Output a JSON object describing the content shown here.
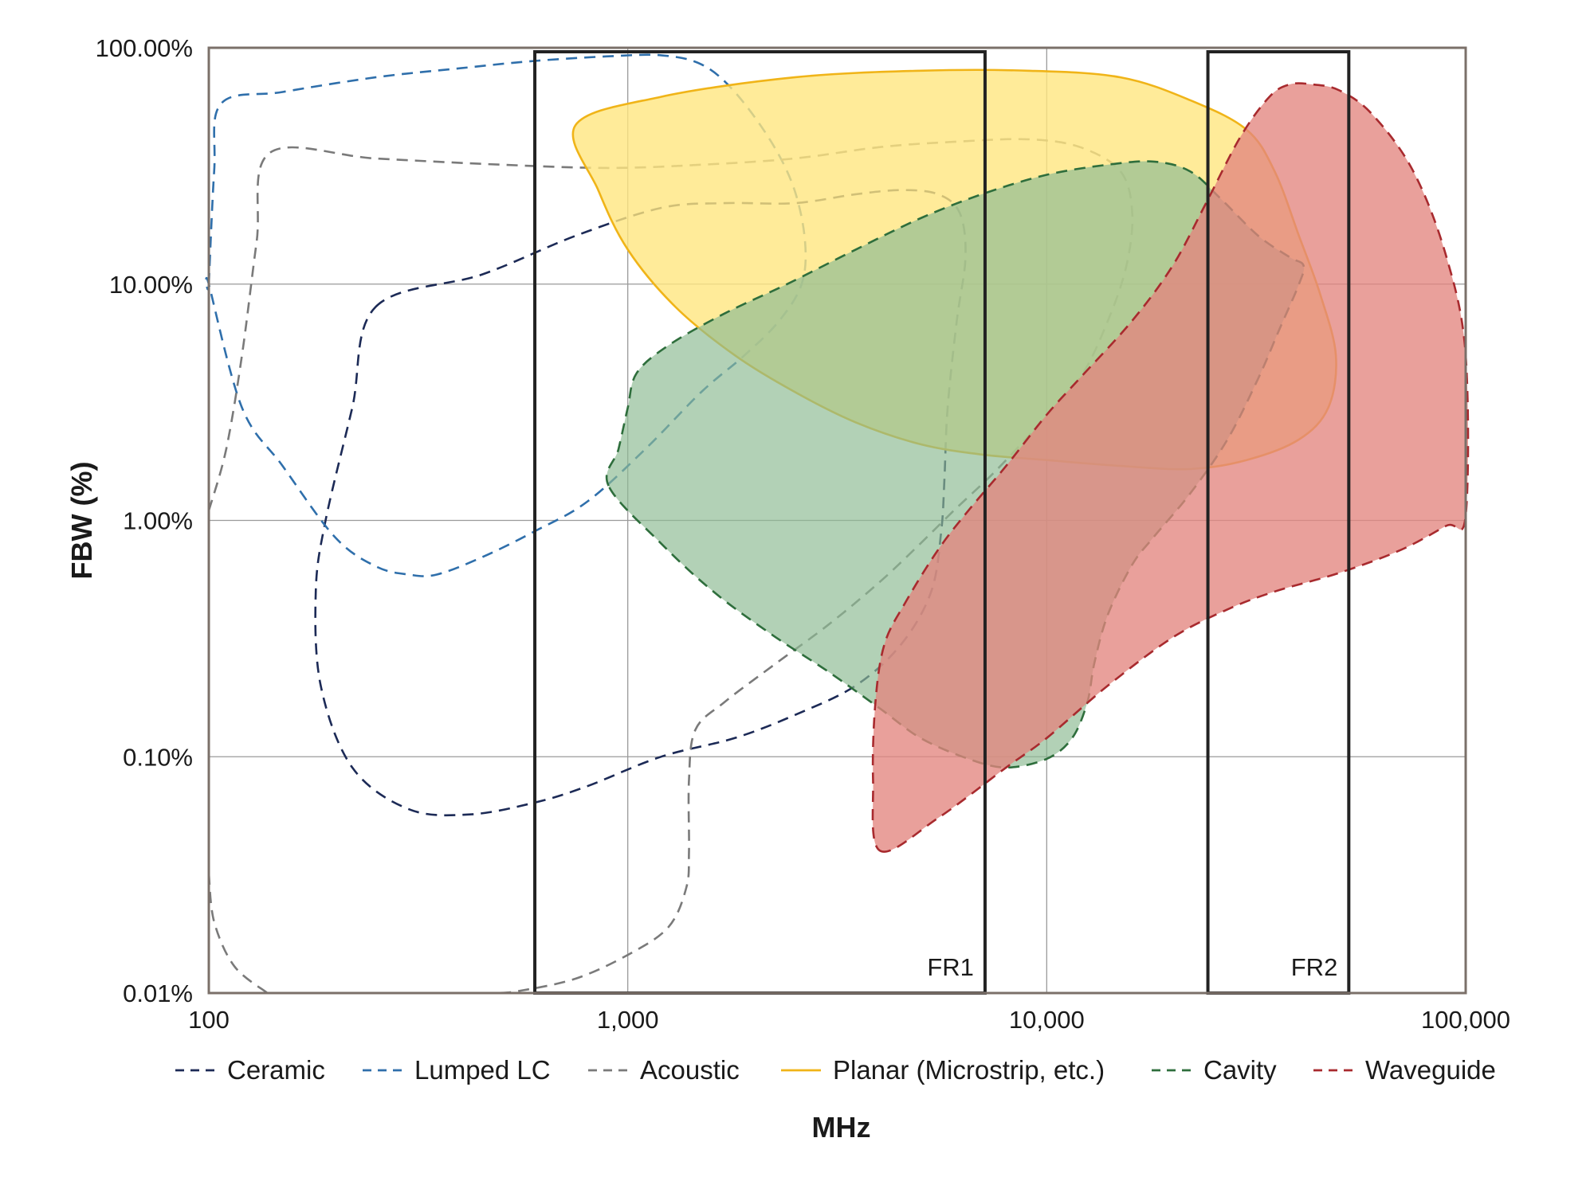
{
  "chart_data": {
    "type": "area",
    "xlabel": "MHz",
    "ylabel": "FBW (%)",
    "x_scale": "log",
    "y_scale": "log",
    "xlim": [
      100,
      100000
    ],
    "ylim": [
      0.01,
      100
    ],
    "x_ticks": [
      {
        "value": 100,
        "label": "100"
      },
      {
        "value": 1000,
        "label": "1,000"
      },
      {
        "value": 10000,
        "label": "10,000"
      },
      {
        "value": 100000,
        "label": "100,000"
      }
    ],
    "y_ticks": [
      {
        "value": 0.01,
        "label": "0.01%"
      },
      {
        "value": 0.1,
        "label": "0.10%"
      },
      {
        "value": 1,
        "label": "1.00%"
      },
      {
        "value": 10,
        "label": "10.00%"
      },
      {
        "value": 100,
        "label": "100.00%"
      }
    ],
    "grid": true,
    "legend_position": "bottom",
    "bands": [
      {
        "label": "FR1",
        "x_range": [
          600,
          7125
        ]
      },
      {
        "label": "FR2",
        "x_range": [
          24250,
          52600
        ]
      }
    ],
    "series": [
      {
        "name": "Ceramic",
        "style": "dashed",
        "stroke": "#1c2a56",
        "fill": "none",
        "fill_opacity": 0,
        "points": [
          [
            250,
            8
          ],
          [
            450,
            11
          ],
          [
            750,
            16
          ],
          [
            1200,
            21
          ],
          [
            1700,
            22
          ],
          [
            2500,
            22
          ],
          [
            3500,
            24
          ],
          [
            4500,
            25
          ],
          [
            5500,
            24
          ],
          [
            6200,
            20
          ],
          [
            6400,
            13
          ],
          [
            6100,
            7
          ],
          [
            5800,
            3
          ],
          [
            5700,
            1.5
          ],
          [
            5600,
            0.9
          ],
          [
            5300,
            0.5
          ],
          [
            4500,
            0.3
          ],
          [
            3500,
            0.2
          ],
          [
            2500,
            0.15
          ],
          [
            1800,
            0.12
          ],
          [
            1200,
            0.1
          ],
          [
            800,
            0.075
          ],
          [
            600,
            0.064
          ],
          [
            420,
            0.057
          ],
          [
            300,
            0.06
          ],
          [
            220,
            0.09
          ],
          [
            185,
            0.2
          ],
          [
            180,
            0.5
          ],
          [
            190,
            1
          ],
          [
            220,
            3
          ]
        ]
      },
      {
        "name": "Lumped LC",
        "style": "dashed",
        "stroke": "#2f6fab",
        "fill": "none",
        "fill_opacity": 0,
        "points": [
          [
            100,
            10
          ],
          [
            103,
            30
          ],
          [
            107,
            58
          ],
          [
            150,
            65
          ],
          [
            250,
            75
          ],
          [
            400,
            82
          ],
          [
            600,
            88
          ],
          [
            900,
            92
          ],
          [
            1200,
            93
          ],
          [
            1500,
            85
          ],
          [
            1800,
            65
          ],
          [
            2200,
            40
          ],
          [
            2500,
            25
          ],
          [
            2650,
            15
          ],
          [
            2600,
            10
          ],
          [
            2300,
            7
          ],
          [
            1900,
            5
          ],
          [
            1500,
            3.5
          ],
          [
            1100,
            2
          ],
          [
            800,
            1.2
          ],
          [
            600,
            0.9
          ],
          [
            450,
            0.7
          ],
          [
            350,
            0.59
          ],
          [
            300,
            0.59
          ],
          [
            250,
            0.64
          ],
          [
            200,
            0.85
          ],
          [
            150,
            1.7
          ],
          [
            120,
            3
          ],
          [
            100,
            10
          ]
        ]
      },
      {
        "name": "Acoustic",
        "style": "dashed",
        "stroke": "#7a7a7a",
        "fill": "none",
        "fill_opacity": 0,
        "paths": [
          [
            [
              100,
              1.1
            ],
            [
              110,
              2
            ],
            [
              120,
              5
            ],
            [
              130,
              15
            ],
            [
              140,
              36
            ],
            [
              250,
              34
            ],
            [
              500,
              32
            ],
            [
              900,
              31
            ],
            [
              1500,
              32
            ],
            [
              2500,
              34
            ],
            [
              4000,
              38
            ],
            [
              6000,
              40
            ],
            [
              9000,
              41
            ],
            [
              12000,
              38
            ],
            [
              15000,
              30
            ],
            [
              16000,
              20
            ],
            [
              15500,
              12
            ],
            [
              14000,
              7
            ],
            [
              12000,
              4
            ],
            [
              9500,
              2.5
            ],
            [
              7500,
              1.6
            ],
            [
              6000,
              1.1
            ],
            [
              5000,
              0.8
            ],
            [
              4000,
              0.55
            ],
            [
              3000,
              0.36
            ],
            [
              2200,
              0.24
            ],
            [
              1700,
              0.17
            ],
            [
              1450,
              0.13
            ],
            [
              1400,
              0.08
            ],
            [
              1400,
              0.04
            ],
            [
              1380,
              0.028
            ],
            [
              1250,
              0.019
            ],
            [
              1000,
              0.0145
            ],
            [
              750,
              0.0115
            ],
            [
              550,
              0.0102
            ],
            [
              480,
              0.01
            ]
          ],
          [
            [
              100,
              0.032
            ],
            [
              103,
              0.02
            ],
            [
              115,
              0.013
            ],
            [
              138,
              0.01
            ]
          ]
        ]
      },
      {
        "name": "Planar (Microstrip, etc.)",
        "style": "solid",
        "stroke": "#f0b418",
        "fill": "#ffe680",
        "fill_opacity": 0.8,
        "points": [
          [
            750,
            47
          ],
          [
            1200,
            62
          ],
          [
            2500,
            75
          ],
          [
            5000,
            80
          ],
          [
            9000,
            80
          ],
          [
            15000,
            75
          ],
          [
            22000,
            60
          ],
          [
            30000,
            45
          ],
          [
            35000,
            30
          ],
          [
            40000,
            16
          ],
          [
            45000,
            9
          ],
          [
            49000,
            5
          ],
          [
            47000,
            3
          ],
          [
            40000,
            2.2
          ],
          [
            30000,
            1.8
          ],
          [
            22000,
            1.65
          ],
          [
            15000,
            1.7
          ],
          [
            10000,
            1.8
          ],
          [
            7000,
            1.9
          ],
          [
            5000,
            2.1
          ],
          [
            3500,
            2.6
          ],
          [
            2500,
            3.5
          ],
          [
            1800,
            5
          ],
          [
            1300,
            8
          ],
          [
            1000,
            14
          ],
          [
            850,
            25
          ]
        ]
      },
      {
        "name": "Cavity",
        "style": "dashed",
        "stroke": "#2e6e3c",
        "fill": "#8dbb93",
        "fill_opacity": 0.68,
        "points": [
          [
            900,
            1.4
          ],
          [
            950,
            2
          ],
          [
            1000,
            3
          ],
          [
            1050,
            4.2
          ],
          [
            1250,
            5.5
          ],
          [
            1700,
            7.5
          ],
          [
            2400,
            10
          ],
          [
            3500,
            14
          ],
          [
            5000,
            19
          ],
          [
            7000,
            24
          ],
          [
            10000,
            29
          ],
          [
            14000,
            32
          ],
          [
            18000,
            33
          ],
          [
            22000,
            30
          ],
          [
            26000,
            23
          ],
          [
            32000,
            16
          ],
          [
            38000,
            13
          ],
          [
            41000,
            12
          ],
          [
            40000,
            10
          ],
          [
            36000,
            6.5
          ],
          [
            32000,
            4
          ],
          [
            27000,
            2.2
          ],
          [
            22000,
            1.3
          ],
          [
            18000,
            0.85
          ],
          [
            16000,
            0.65
          ],
          [
            14000,
            0.4
          ],
          [
            13000,
            0.25
          ],
          [
            12500,
            0.17
          ],
          [
            11500,
            0.12
          ],
          [
            10000,
            0.098
          ],
          [
            8000,
            0.09
          ],
          [
            6500,
            0.098
          ],
          [
            5000,
            0.12
          ],
          [
            4000,
            0.16
          ],
          [
            3000,
            0.23
          ],
          [
            2200,
            0.33
          ],
          [
            1600,
            0.5
          ],
          [
            1200,
            0.8
          ]
        ]
      },
      {
        "name": "Waveguide",
        "style": "dashed",
        "stroke": "#a82a2e",
        "fill": "#e3857f",
        "fill_opacity": 0.78,
        "points": [
          [
            4000,
            0.04
          ],
          [
            5500,
            0.055
          ],
          [
            8000,
            0.09
          ],
          [
            10000,
            0.12
          ],
          [
            14000,
            0.2
          ],
          [
            20000,
            0.32
          ],
          [
            27000,
            0.42
          ],
          [
            35000,
            0.5
          ],
          [
            50000,
            0.6
          ],
          [
            70000,
            0.75
          ],
          [
            90000,
            0.95
          ],
          [
            100000,
            1.05
          ],
          [
            100000,
            5
          ],
          [
            90000,
            13
          ],
          [
            75000,
            30
          ],
          [
            60000,
            52
          ],
          [
            50000,
            66
          ],
          [
            43000,
            70
          ],
          [
            38000,
            70
          ],
          [
            34000,
            62
          ],
          [
            29000,
            42
          ],
          [
            24000,
            22
          ],
          [
            20000,
            12
          ],
          [
            16000,
            7
          ],
          [
            12000,
            4
          ],
          [
            10000,
            2.8
          ],
          [
            8000,
            1.7
          ],
          [
            6500,
            1.1
          ],
          [
            5500,
            0.75
          ],
          [
            4600,
            0.45
          ],
          [
            4100,
            0.3
          ],
          [
            3900,
            0.17
          ],
          [
            3850,
            0.08
          ]
        ]
      }
    ]
  }
}
